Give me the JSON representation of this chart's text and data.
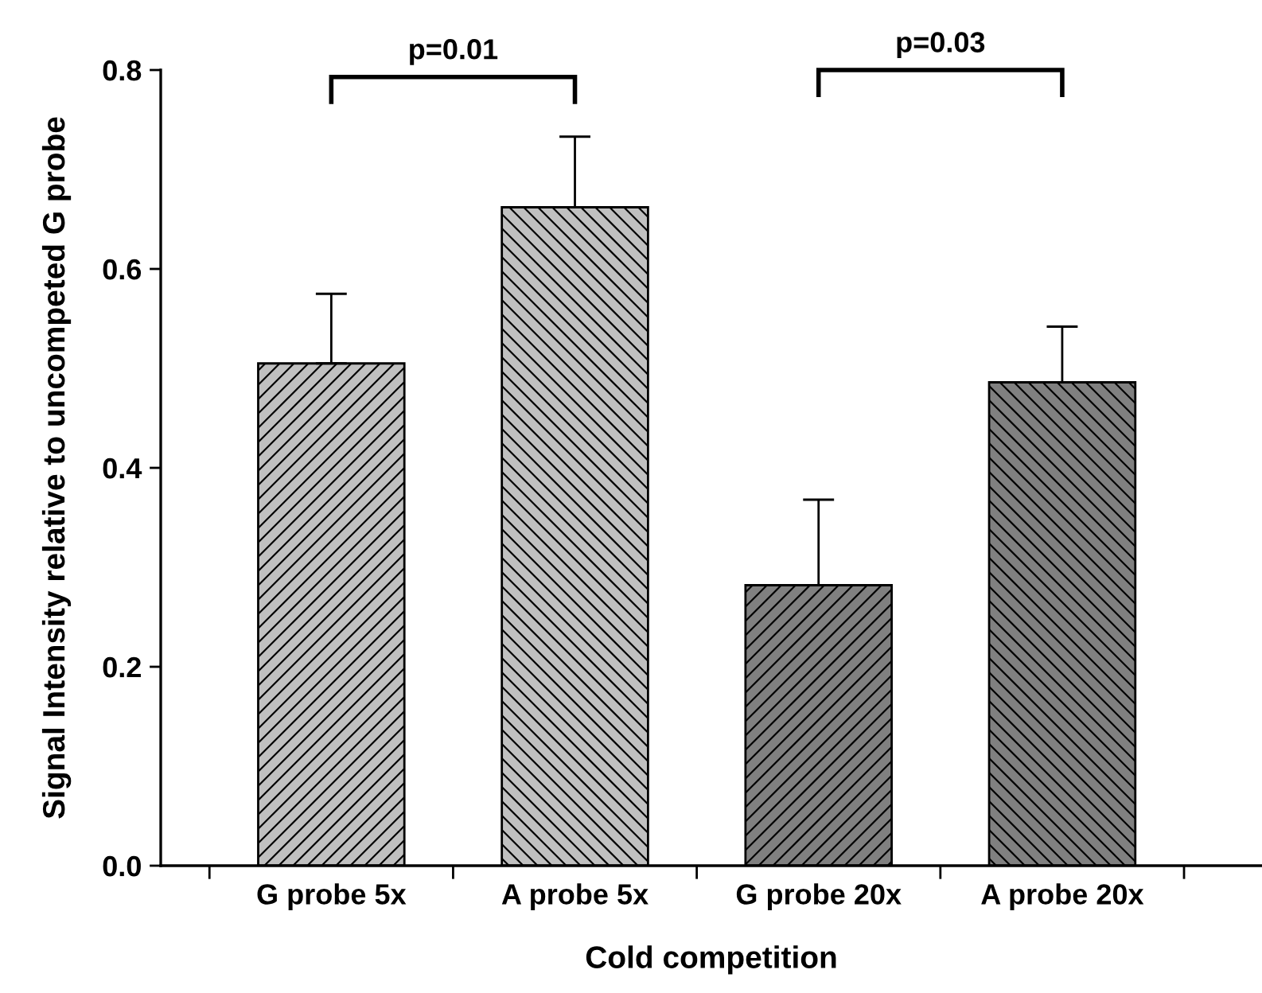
{
  "chart_data": {
    "type": "bar",
    "xlabel": "Cold competition",
    "ylabel": "Signal Intensity relative to uncompeted G probe",
    "categories": [
      "G probe 5x",
      "A probe 5x",
      "G probe 20x",
      "A probe 20x"
    ],
    "values": [
      0.505,
      0.662,
      0.282,
      0.486
    ],
    "colors": [
      "#c0c0c0",
      "#c0c0c0",
      "#808080",
      "#808080"
    ],
    "errors": [
      [
        0.505,
        0.575
      ],
      [
        0.662,
        0.733
      ],
      [
        0.282,
        0.368
      ],
      [
        0.486,
        0.542
      ]
    ],
    "ylim": [
      0,
      0.8
    ],
    "yticks": [
      {
        "value": 0,
        "label": "0.0"
      },
      0.2,
      0.4,
      0.6,
      0.8
    ],
    "annotations": [
      "p=0.01",
      "p=0.03"
    ],
    "grid": false,
    "legend": false
  }
}
